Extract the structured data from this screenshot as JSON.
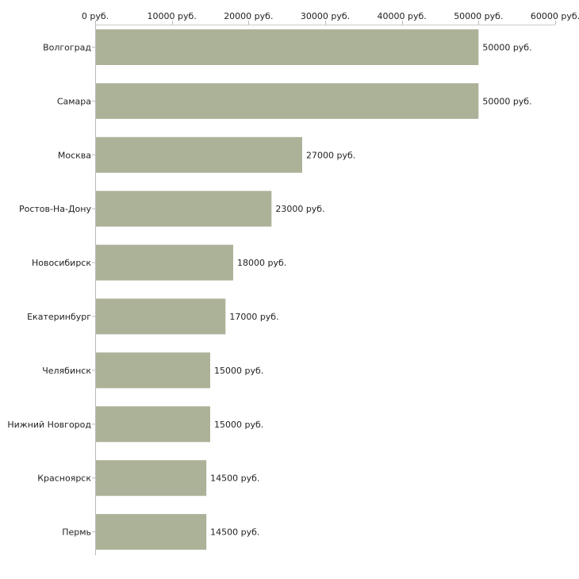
{
  "chart_data": {
    "type": "bar",
    "orientation": "horizontal",
    "title": "",
    "xlabel": "",
    "ylabel": "",
    "xlim": [
      0,
      60000
    ],
    "tick_values": [
      0,
      10000,
      20000,
      30000,
      40000,
      50000,
      60000
    ],
    "tick_labels": [
      "0 руб.",
      "10000 руб.",
      "20000 руб.",
      "30000 руб.",
      "40000 руб.",
      "50000 руб.",
      "60000 руб."
    ],
    "axis_position": "top",
    "grid": false,
    "bar_color": "#acb298",
    "categories": [
      "Волгоград",
      "Самара",
      "Москва",
      "Ростов-На-Дону",
      "Новосибирск",
      "Екатеринбург",
      "Челябинск",
      "Нижний Новгород",
      "Красноярск",
      "Пермь"
    ],
    "values": [
      50000,
      50000,
      27000,
      23000,
      18000,
      17000,
      15000,
      15000,
      14500,
      14500
    ],
    "value_labels": [
      "50000 руб.",
      "50000 руб.",
      "27000 руб.",
      "23000 руб.",
      "18000 руб.",
      "17000 руб.",
      "15000 руб.",
      "15000 руб.",
      "14500 руб.",
      "14500 руб."
    ]
  }
}
